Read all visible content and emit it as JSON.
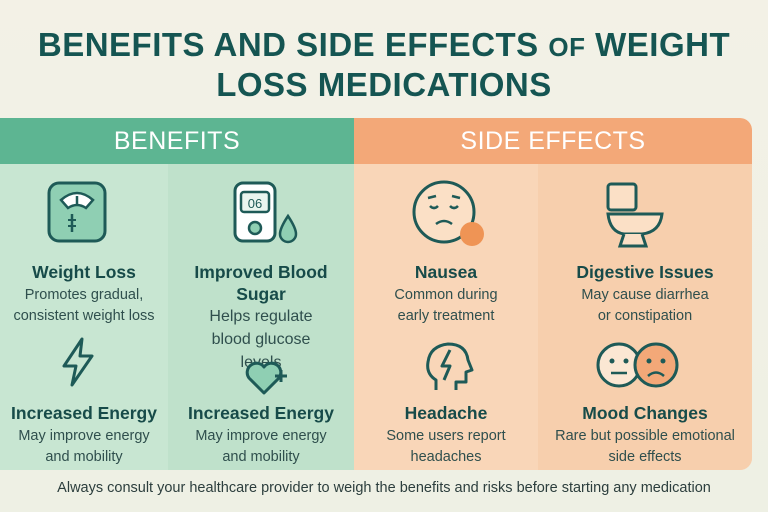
{
  "title_line1_main": "BENEFITS AND SIDE EFFECTS ",
  "title_line1_small": "OF",
  "title_line1_end": " WEIGHT",
  "title_line2": "LOSS MEDICATIONS",
  "benefits": {
    "header": "BENEFITS",
    "items": [
      {
        "name": "Weight Loss",
        "desc": "Promotes gradual, consistent weight loss",
        "icon": "scale-icon"
      },
      {
        "name": "Improved Blood Sugar",
        "desc": "Helps regulate blood glucose levels",
        "icon": "glucose-meter-icon",
        "meter_reading": "06"
      },
      {
        "name": "Increased Energy",
        "desc": "May improve energy and mobility",
        "icon": "lightning-icon"
      },
      {
        "name": "Increased Energy",
        "desc": "May improve energy and mobility",
        "icon": "heart-plus-icon"
      }
    ]
  },
  "side_effects": {
    "header": "SIDE EFFECTS",
    "items": [
      {
        "name": "Nausea",
        "desc": "Common during early treatment",
        "icon": "nausea-face-icon"
      },
      {
        "name": "Digestive Issues",
        "desc": "May cause diarrhea or constipation",
        "icon": "toilet-icon"
      },
      {
        "name": "Headache",
        "desc": "Some users report headaches",
        "icon": "headache-icon"
      },
      {
        "name": "Mood Changes",
        "desc": "Rare but possible emotional side effects",
        "icon": "mood-faces-icon"
      }
    ]
  },
  "footer": "Always consult your healthcare provider to weigh the benefits and risks before starting any medication",
  "colors": {
    "benefits_header": "#5db592",
    "side_header": "#f3a878",
    "title": "#155552"
  }
}
